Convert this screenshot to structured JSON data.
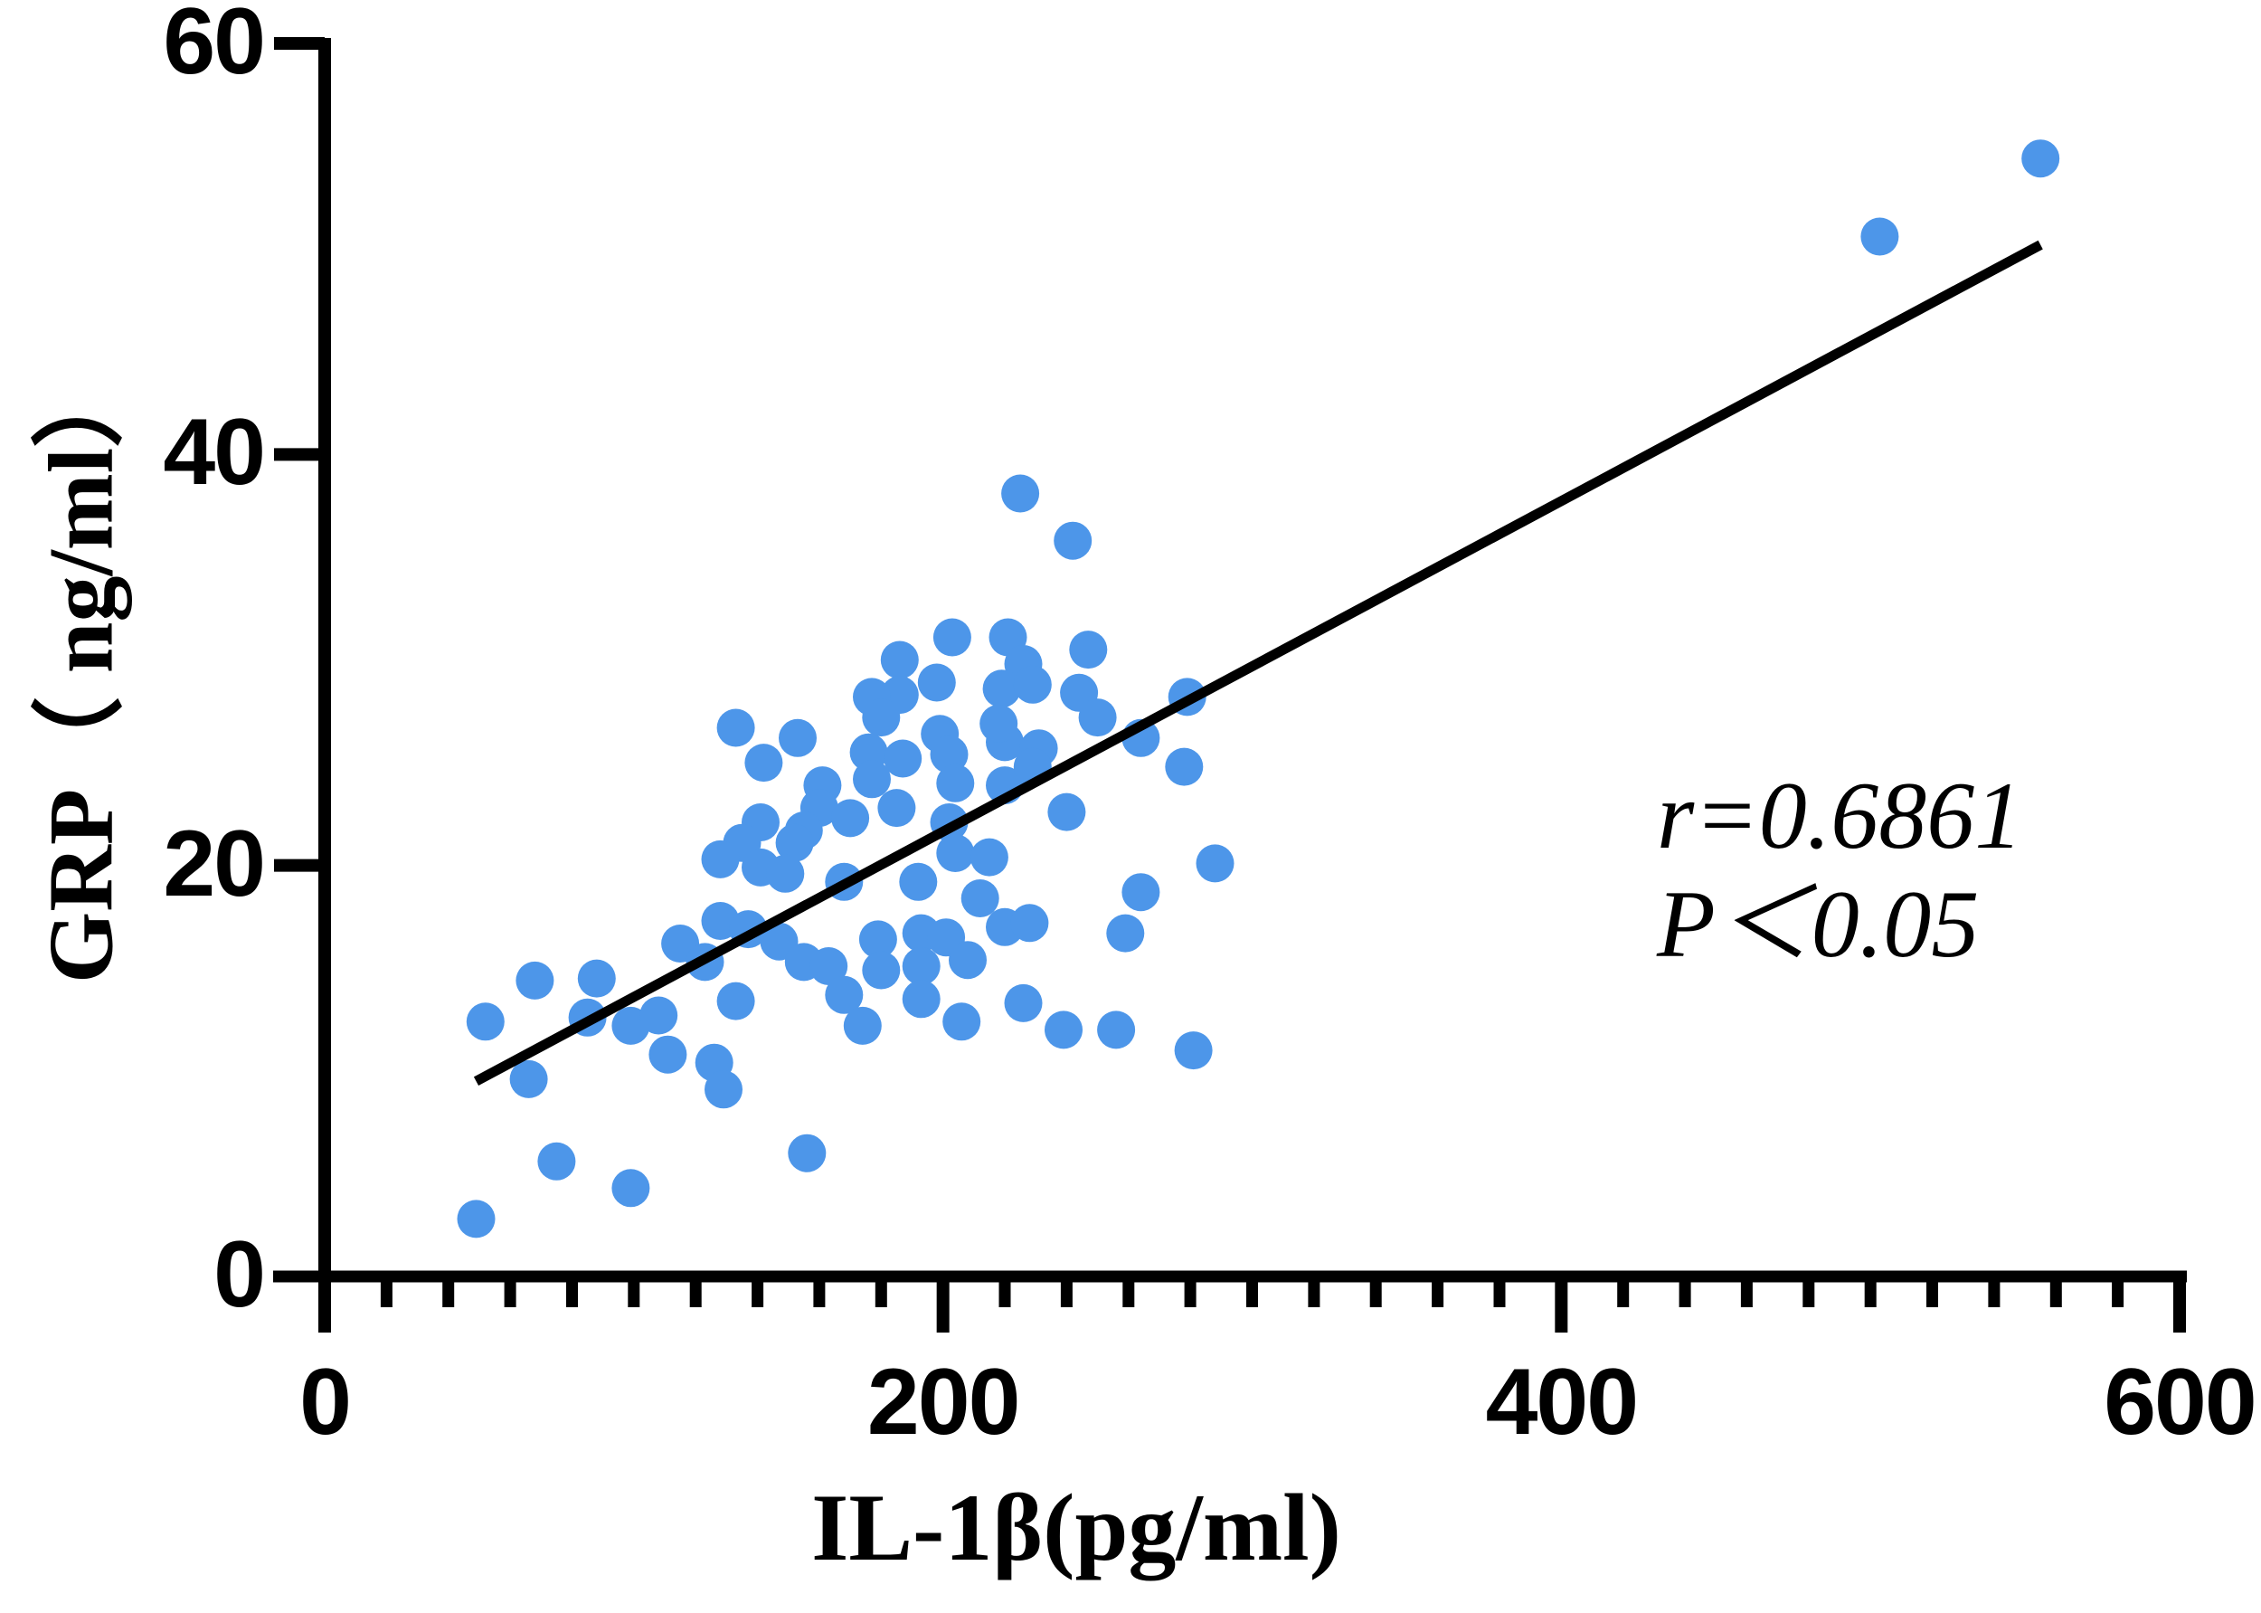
{
  "figure": {
    "background": "#ffffff"
  },
  "chart_data": {
    "type": "scatter",
    "title": "",
    "xlabel": "IL-1β(pg/ml)",
    "ylabel": "GRP（ ng/ml）",
    "xlim": [
      0,
      600
    ],
    "ylim": [
      0,
      60
    ],
    "x_ticks": [
      "0",
      "200",
      "400",
      "600"
    ],
    "y_ticks": [
      "0",
      "20",
      "40",
      "60"
    ],
    "x_minor_step": 20,
    "grid": false,
    "legend": "none",
    "annotation_lines": [
      "r=0.6861",
      "P＜0.05"
    ],
    "colors": {
      "point": "#4d96e9",
      "regression_line": "#000000",
      "axis": "#000000",
      "text": "#000000"
    },
    "regression_line": {
      "x1": 49,
      "y1": 9.5,
      "x2": 555,
      "y2": 50.2
    },
    "points": [
      [
        225,
        38.1
      ],
      [
        242,
        35.8
      ],
      [
        203,
        31.1
      ],
      [
        221,
        31.1
      ],
      [
        186,
        30
      ],
      [
        226,
        29.8
      ],
      [
        247,
        30.5
      ],
      [
        198,
        28.9
      ],
      [
        186,
        28.3
      ],
      [
        219,
        28.6
      ],
      [
        229,
        28.8
      ],
      [
        244,
        28.4
      ],
      [
        177,
        28.2
      ],
      [
        279,
        28.2
      ],
      [
        180,
        27.2
      ],
      [
        250,
        27.2
      ],
      [
        133,
        26.7
      ],
      [
        199,
        26.4
      ],
      [
        153,
        26.2
      ],
      [
        264,
        26.2
      ],
      [
        220,
        26
      ],
      [
        218,
        26.9
      ],
      [
        142,
        25
      ],
      [
        176,
        25.5
      ],
      [
        187,
        25.2
      ],
      [
        202,
        25.4
      ],
      [
        231,
        25.7
      ],
      [
        161,
        23.9
      ],
      [
        177,
        24.2
      ],
      [
        204,
        24
      ],
      [
        220,
        23.9
      ],
      [
        229,
        24.8
      ],
      [
        278,
        24.8
      ],
      [
        160,
        22.8
      ],
      [
        141,
        22.1
      ],
      [
        155,
        21.7
      ],
      [
        170,
        22.3
      ],
      [
        240,
        22.6
      ],
      [
        185,
        22.8
      ],
      [
        202,
        22.1
      ],
      [
        135,
        21.1
      ],
      [
        152,
        21.1
      ],
      [
        128,
        20.3
      ],
      [
        204,
        20.6
      ],
      [
        215,
        20.4
      ],
      [
        288,
        20.1
      ],
      [
        141,
        19.9
      ],
      [
        149,
        19.6
      ],
      [
        168,
        19.2
      ],
      [
        192,
        19.2
      ],
      [
        264,
        18.7
      ],
      [
        212,
        18.4
      ],
      [
        128,
        17.3
      ],
      [
        137,
        16.9
      ],
      [
        220,
        17
      ],
      [
        228,
        17.2
      ],
      [
        193,
        16.7
      ],
      [
        201,
        16.5
      ],
      [
        179,
        16.4
      ],
      [
        259,
        16.7
      ],
      [
        147,
        16.3
      ],
      [
        115,
        16.2
      ],
      [
        123,
        15.3
      ],
      [
        155,
        15.3
      ],
      [
        163,
        15.1
      ],
      [
        180,
        14.9
      ],
      [
        193,
        15.1
      ],
      [
        208,
        15.4
      ],
      [
        88,
        14.5
      ],
      [
        68,
        14.4
      ],
      [
        168,
        13.7
      ],
      [
        133,
        13.4
      ],
      [
        226,
        13.3
      ],
      [
        193,
        13.5
      ],
      [
        52,
        12.4
      ],
      [
        85,
        12.6
      ],
      [
        99,
        12.2
      ],
      [
        108,
        12.7
      ],
      [
        174,
        12.2
      ],
      [
        206,
        12.4
      ],
      [
        239,
        12
      ],
      [
        256,
        12
      ],
      [
        281,
        11
      ],
      [
        111,
        10.8
      ],
      [
        126,
        10.4
      ],
      [
        129,
        9.1
      ],
      [
        66,
        9.6
      ],
      [
        75,
        5.6
      ],
      [
        156,
        6
      ],
      [
        99,
        4.3
      ],
      [
        49,
        2.8
      ],
      [
        503,
        50.6
      ],
      [
        555,
        54.4
      ]
    ]
  }
}
